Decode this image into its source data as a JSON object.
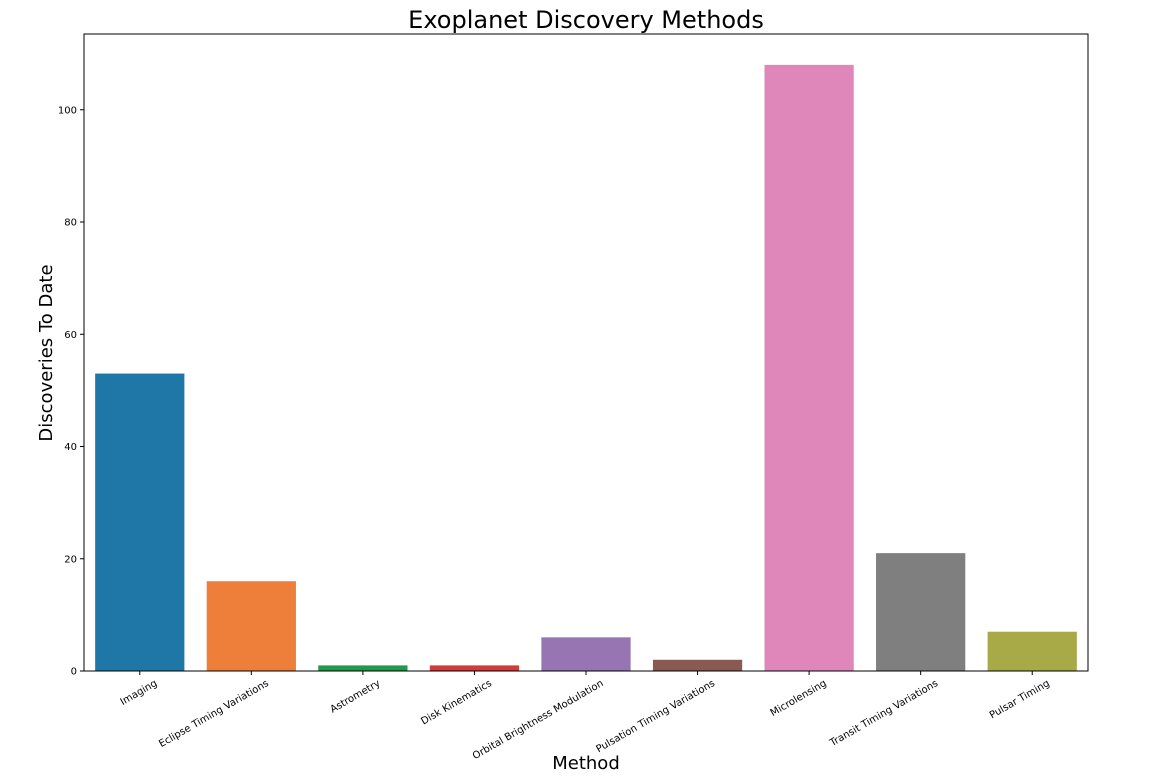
{
  "chart_data": {
    "type": "bar",
    "title": "Exoplanet Discovery Methods",
    "xlabel": "Method",
    "ylabel": "Discoveries To Date",
    "categories": [
      "Imaging",
      "Eclipse Timing Variations",
      "Astrometry",
      "Disk Kinematics",
      "Orbital Brightness Modulation",
      "Pulsation Timing Variations",
      "Microlensing",
      "Transit Timing Variations",
      "Pulsar Timing"
    ],
    "values": [
      53,
      16,
      1,
      1,
      6,
      2,
      108,
      21,
      7
    ],
    "colors": [
      "#1f77a8",
      "#ee7f3a",
      "#1f9a4c",
      "#d33a3a",
      "#9775b3",
      "#8a5a52",
      "#df86bb",
      "#7f7f7f",
      "#a8aa48"
    ],
    "yticks": [
      "0",
      "20",
      "40",
      "60",
      "80",
      "100"
    ],
    "ylim": [
      0,
      113.5
    ],
    "grid": false,
    "legend": "none"
  }
}
